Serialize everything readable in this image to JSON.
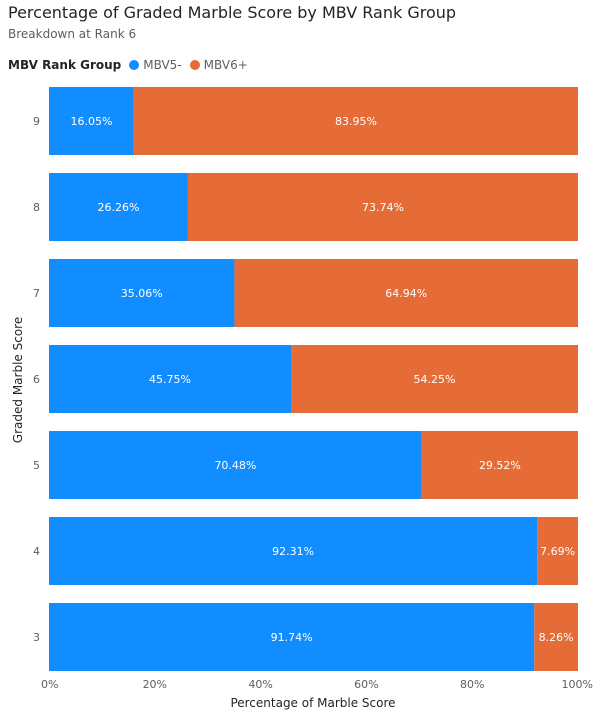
{
  "chart_data": {
    "type": "bar",
    "orientation": "horizontal",
    "stacked": "100%",
    "title": "Percentage of Graded Marble Score by MBV Rank Group",
    "subtitle": "Breakdown at Rank 6",
    "xlabel": "Percentage of Marble Score",
    "ylabel": "Graded Marble Score",
    "legend_title": "MBV Rank Group",
    "legend_position": "top-left",
    "xlim": [
      0,
      100
    ],
    "x_ticks": [
      "0%",
      "20%",
      "40%",
      "60%",
      "80%",
      "100%"
    ],
    "x_tick_values": [
      0,
      20,
      40,
      60,
      80,
      100
    ],
    "categories": [
      "9",
      "8",
      "7",
      "6",
      "5",
      "4",
      "3"
    ],
    "series": [
      {
        "name": "MBV5-",
        "color": "#118DFF",
        "values": [
          16.05,
          26.26,
          35.06,
          45.75,
          70.48,
          92.31,
          91.74
        ],
        "labels": [
          "16.05%",
          "26.26%",
          "35.06%",
          "45.75%",
          "70.48%",
          "92.31%",
          "91.74%"
        ]
      },
      {
        "name": "MBV6+",
        "color": "#E66C37",
        "values": [
          83.95,
          73.74,
          64.94,
          54.25,
          29.52,
          7.69,
          8.26
        ],
        "labels": [
          "83.95%",
          "73.74%",
          "64.94%",
          "54.25%",
          "29.52%",
          "7.69%",
          "8.26%"
        ]
      }
    ]
  }
}
